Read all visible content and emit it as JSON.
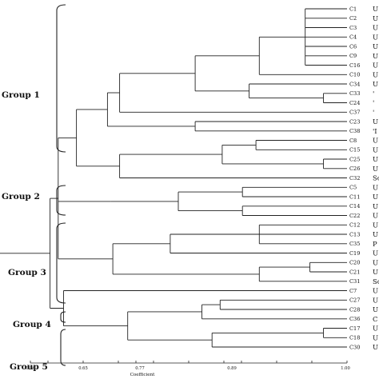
{
  "axis": {
    "label": "Coefficient",
    "ticks": [
      "0.56",
      "0.65",
      "0.77",
      "0.89",
      "1.00"
    ]
  },
  "groups": [
    {
      "label": "Group 1"
    },
    {
      "label": "Group 2"
    },
    {
      "label": "Group 3"
    },
    {
      "label": "Group 4"
    },
    {
      "label": "Group 5"
    }
  ],
  "leaves": [
    {
      "label": "C1",
      "tail": "U"
    },
    {
      "label": "C2",
      "tail": "U"
    },
    {
      "label": "C3",
      "tail": "U"
    },
    {
      "label": "C4",
      "tail": "U"
    },
    {
      "label": "C6",
      "tail": "U"
    },
    {
      "label": "C9",
      "tail": "U"
    },
    {
      "label": "C16",
      "tail": "U"
    },
    {
      "label": "C10",
      "tail": "U"
    },
    {
      "label": "C34",
      "tail": "U"
    },
    {
      "label": "C33",
      "tail": "'"
    },
    {
      "label": "C24",
      "tail": "'"
    },
    {
      "label": "C37",
      "tail": "'"
    },
    {
      "label": "C23",
      "tail": "U"
    },
    {
      "label": "C38",
      "tail": "'I"
    },
    {
      "label": "C8",
      "tail": "U"
    },
    {
      "label": "C15",
      "tail": "U"
    },
    {
      "label": "C25",
      "tail": "U"
    },
    {
      "label": "C26",
      "tail": "U"
    },
    {
      "label": "C32",
      "tail": "Sc"
    },
    {
      "label": "C5",
      "tail": "U"
    },
    {
      "label": "C11",
      "tail": "U"
    },
    {
      "label": "C14",
      "tail": "U"
    },
    {
      "label": "C22",
      "tail": "U"
    },
    {
      "label": "C12",
      "tail": "U"
    },
    {
      "label": "C13",
      "tail": "U"
    },
    {
      "label": "C35",
      "tail": "P"
    },
    {
      "label": "C19",
      "tail": "U"
    },
    {
      "label": "C20",
      "tail": "U"
    },
    {
      "label": "C21",
      "tail": "U"
    },
    {
      "label": "C31",
      "tail": "Sc"
    },
    {
      "label": "C7",
      "tail": "U"
    },
    {
      "label": "C27",
      "tail": "U"
    },
    {
      "label": "C28",
      "tail": "U"
    },
    {
      "label": "C36",
      "tail": "C"
    },
    {
      "label": "C17",
      "tail": "U"
    },
    {
      "label": "C18",
      "tail": "U"
    },
    {
      "label": "C30",
      "tail": "U"
    }
  ],
  "tree": {
    "c": 0.56,
    "ch": [
      {
        "c": 0.572,
        "ch": [
          {
            "c": 0.599,
            "ch": [
              {
                "c": 0.645,
                "ch": [
                  {
                    "c": 0.663,
                    "ch": [
                      {
                        "c": 0.775,
                        "ch": [
                          {
                            "c": 0.87,
                            "ch": [
                              {
                                "c": 0.938,
                                "ch": [
                                  0,
                                  1,
                                  2,
                                  3,
                                  4,
                                  5,
                                  6
                                ]
                              },
                              7
                            ]
                          },
                          {
                            "c": 0.855,
                            "ch": [
                              8,
                              {
                                "c": 0.965,
                                "ch": [
                                  9,
                                  10
                                ]
                              }
                            ]
                          }
                        ]
                      },
                      11
                    ]
                  },
                  {
                    "c": 0.775,
                    "ch": [
                      12,
                      13
                    ]
                  }
                ]
              },
              {
                "c": 0.663,
                "ch": [
                  {
                    "c": 0.815,
                    "ch": [
                      {
                        "c": 0.865,
                        "ch": [
                          14,
                          15
                        ]
                      },
                      {
                        "c": 0.965,
                        "ch": [
                          16,
                          17
                        ]
                      }
                    ]
                  },
                  18
                ]
              }
            ]
          },
          {
            "c": 0.65,
            "ch": [
              {
                "c": 0.75,
                "ch": [
                  {
                    "c": 0.845,
                    "ch": [
                      19,
                      20
                    ]
                  },
                  {
                    "c": 0.845,
                    "ch": [
                      21,
                      22
                    ]
                  }
                ]
              }
            ]
          },
          {
            "c": 0.653,
            "ch": [
              {
                "c": 0.738,
                "ch": [
                  {
                    "c": 0.87,
                    "ch": [
                      23,
                      24,
                      25
                    ]
                  },
                  26
                ]
              },
              {
                "c": 0.87,
                "ch": [
                  {
                    "c": 0.945,
                    "ch": [
                      27,
                      28
                    ]
                  },
                  29
                ]
              }
            ]
          }
        ]
      },
      {
        "c": 0.58,
        "ch": [
          30,
          {
            "c": 0.675,
            "ch": [
              {
                "c": 0.785,
                "ch": [
                  {
                    "c": 0.812,
                    "ch": [
                      31,
                      32
                    ]
                  },
                  33
                ]
              },
              {
                "c": 0.8,
                "ch": [
                  {
                    "c": 0.965,
                    "ch": [
                      34,
                      35
                    ]
                  },
                  36
                ]
              }
            ]
          }
        ]
      }
    ]
  }
}
